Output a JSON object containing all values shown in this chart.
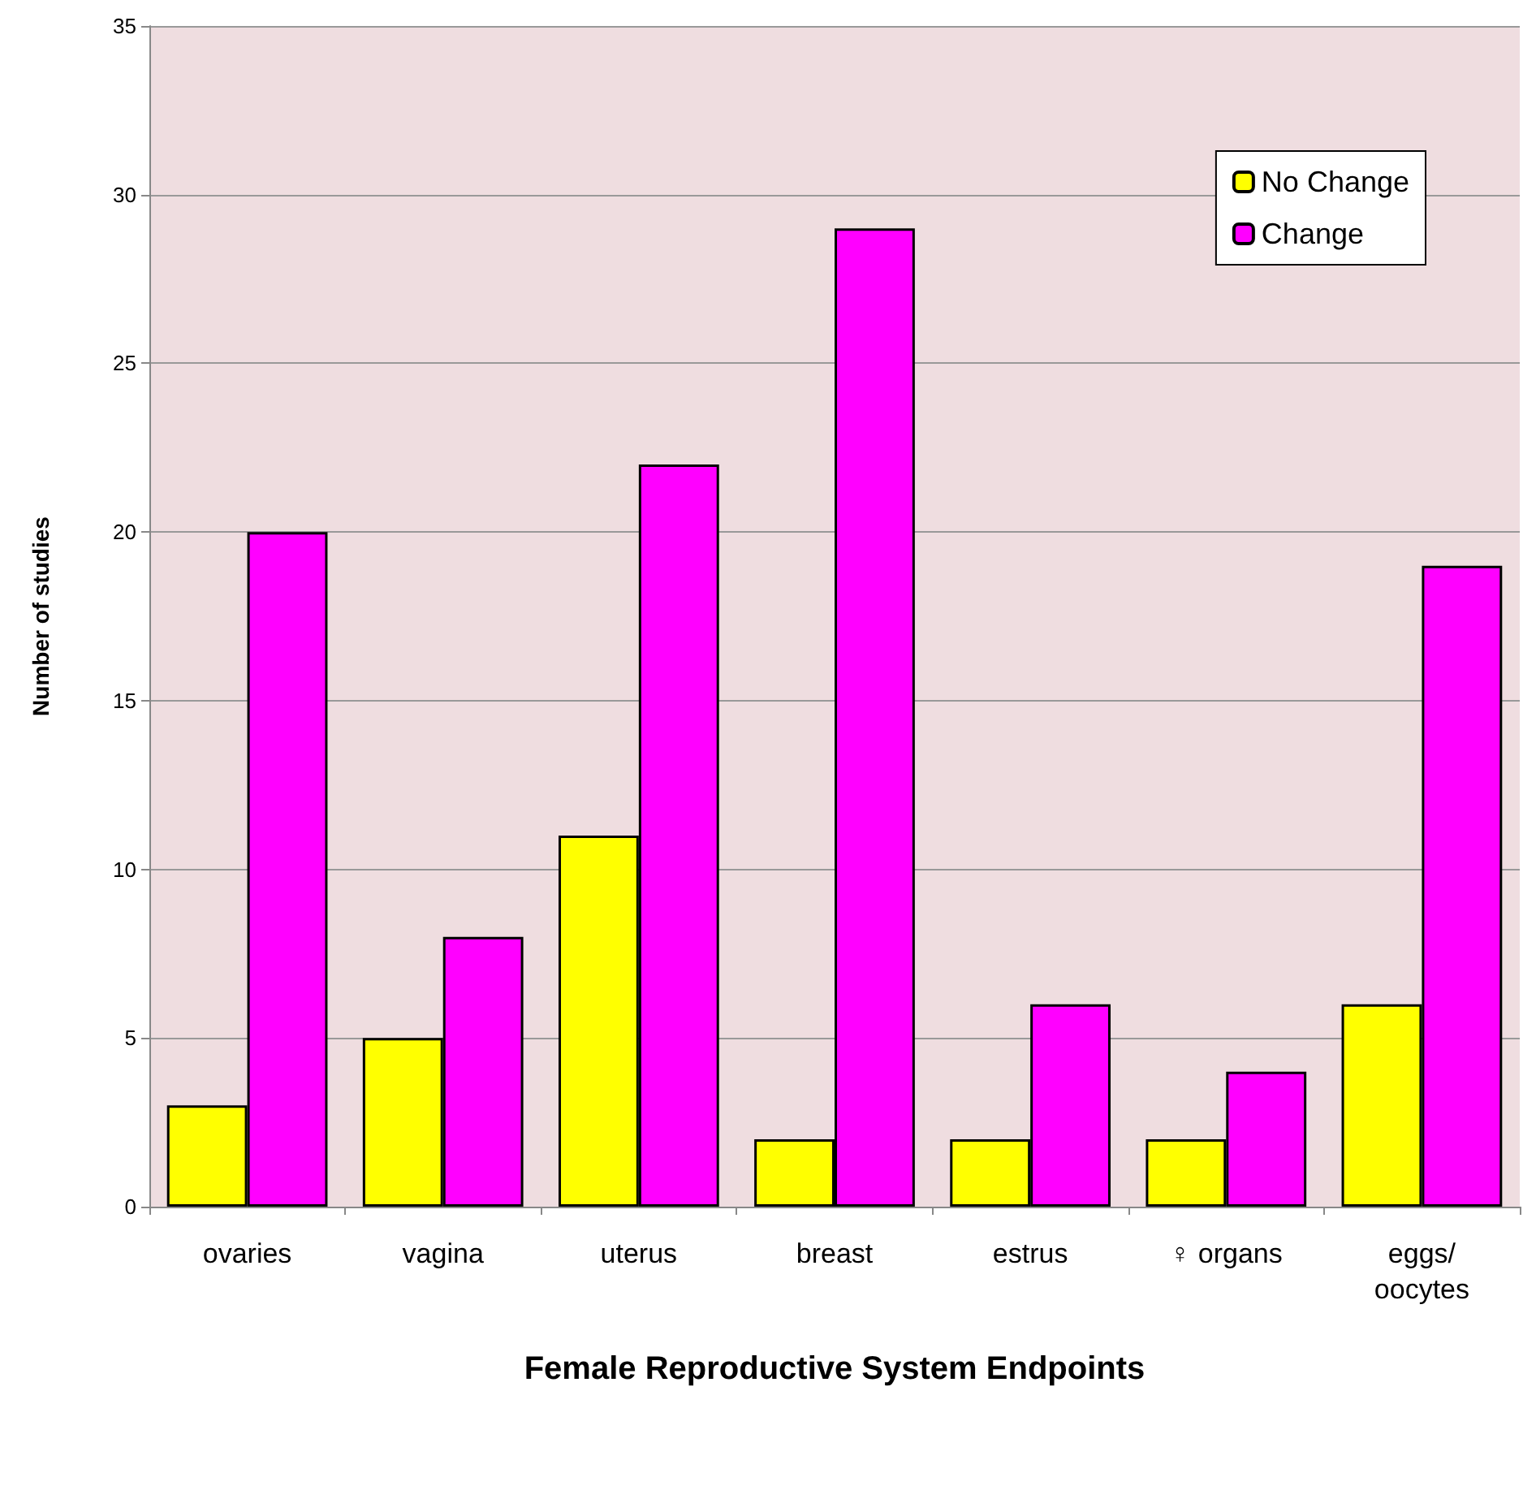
{
  "chart_data": {
    "type": "bar",
    "xlabel": "Female Reproductive System Endpoints",
    "ylabel": "Number of studies",
    "categories": [
      "ovaries",
      "vagina",
      "uterus",
      "breast",
      "estrus",
      "♀ organs",
      "eggs/\noocytes"
    ],
    "series": [
      {
        "name": "No Change",
        "color": "#ffff00",
        "values": [
          3,
          5,
          11,
          2,
          2,
          2,
          6
        ]
      },
      {
        "name": "Change",
        "color": "#ff00ff",
        "values": [
          20,
          8,
          22,
          29,
          6,
          4,
          19
        ]
      }
    ],
    "ylim": [
      0,
      35
    ],
    "yticks": [
      0,
      5,
      10,
      15,
      20,
      25,
      30,
      35
    ],
    "grid": "y",
    "legend": "top right"
  }
}
